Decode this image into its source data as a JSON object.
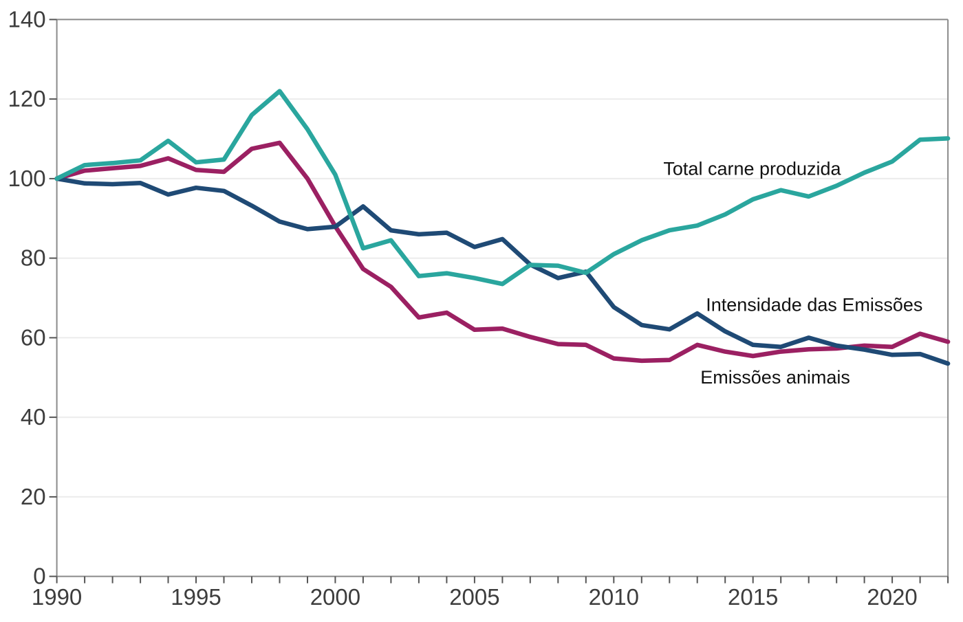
{
  "chart_data": {
    "type": "line",
    "title": "",
    "xlabel": "",
    "ylabel": "",
    "xlim": [
      1990,
      2022
    ],
    "ylim": [
      0,
      140
    ],
    "grid": "horizontal",
    "x": [
      1990,
      1991,
      1992,
      1993,
      1994,
      1995,
      1996,
      1997,
      1998,
      1999,
      2000,
      2001,
      2002,
      2003,
      2004,
      2005,
      2006,
      2007,
      2008,
      2009,
      2010,
      2011,
      2012,
      2013,
      2014,
      2015,
      2016,
      2017,
      2018,
      2019,
      2020,
      2021,
      2022
    ],
    "x_labeled_ticks": [
      1990,
      1995,
      2000,
      2005,
      2010,
      2015,
      2020
    ],
    "y_ticks": [
      0,
      20,
      40,
      60,
      80,
      100,
      120,
      140
    ],
    "series": [
      {
        "id": "total-carne-produzida",
        "name": "Total carne produzida",
        "color": "#2AA69E",
        "values": [
          100,
          103.4,
          103.9,
          104.6,
          109.5,
          104.1,
          104.8,
          116.0,
          122.0,
          112.4,
          101.0,
          82.5,
          84.5,
          75.5,
          76.2,
          75.0,
          73.5,
          78.3,
          78.1,
          76.3,
          81.0,
          84.5,
          87.0,
          88.2,
          91.0,
          94.8,
          97.1,
          95.5,
          98.2,
          101.5,
          104.3,
          109.8,
          110.1
        ]
      },
      {
        "id": "intensidade-das-emissoes",
        "name": "Intensidade das Emissões",
        "color": "#1F4A75",
        "values": [
          100,
          98.8,
          98.6,
          98.9,
          96.0,
          97.7,
          96.9,
          93.2,
          89.2,
          87.3,
          87.9,
          93.0,
          87.0,
          86.0,
          86.4,
          82.8,
          84.8,
          78.4,
          75.0,
          76.6,
          67.7,
          63.2,
          62.1,
          66.1,
          61.6,
          58.2,
          57.7,
          60.0,
          58.0,
          57.0,
          55.7,
          55.9,
          53.5
        ]
      },
      {
        "id": "emissoes-animais",
        "name": "Emissões animais",
        "color": "#9B2062",
        "values": [
          100,
          102.0,
          102.6,
          103.2,
          105.1,
          102.2,
          101.7,
          107.5,
          109.0,
          100.0,
          88.0,
          77.3,
          72.8,
          65.1,
          66.3,
          62.0,
          62.3,
          60.2,
          58.4,
          58.2,
          54.8,
          54.2,
          54.4,
          58.2,
          56.5,
          55.4,
          56.5,
          57.1,
          57.3,
          58.0,
          57.7,
          61.0,
          59.0
        ]
      }
    ],
    "annotations": [
      {
        "series_id": "total-carne-produzida",
        "text": "Total carne produzida",
        "anchor_year": 2014.97,
        "anchor_value": 102.5
      },
      {
        "series_id": "intensidade-das-emissoes",
        "text": "Intensidade das Emissões",
        "anchor_year": 2017.2,
        "anchor_value": 68.3
      },
      {
        "series_id": "emissoes-animais",
        "text": "Emissões animais",
        "anchor_year": 2015.8,
        "anchor_value": 50.0
      }
    ],
    "index_note_base_year_value": 100,
    "colors": {
      "background": "#ffffff",
      "gridline": "#ececec",
      "axis": "#8a8a8a",
      "tick_label": "#3d3d3d",
      "annotation_text": "#111111"
    }
  }
}
